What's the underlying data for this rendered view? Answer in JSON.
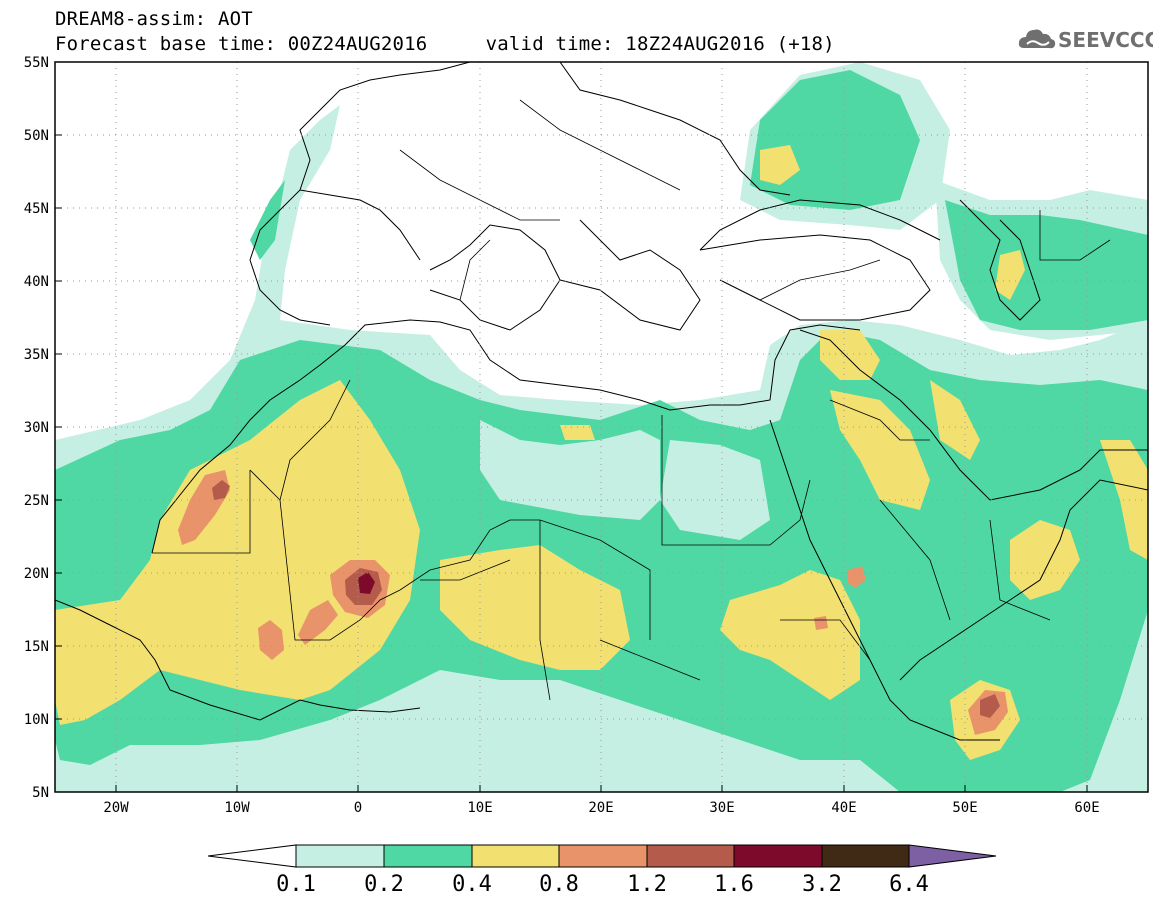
{
  "header": {
    "title_line1": "DREAM8-assim: AOT",
    "title_line2": "Forecast base time: 00Z24AUG2016     valid time: 18Z24AUG2016 (+18)"
  },
  "brand": {
    "logo_icon": "cloud-logo-icon",
    "text": "SEEVCCC"
  },
  "map": {
    "region": "North Africa and Middle East",
    "lon_range": [
      -25,
      65
    ],
    "lat_range": [
      5,
      55
    ],
    "lat_labels": [
      "55N",
      "50N",
      "45N",
      "40N",
      "35N",
      "30N",
      "25N",
      "20N",
      "15N",
      "10N",
      "5N"
    ],
    "lon_labels": [
      "20W",
      "10W",
      "0",
      "10E",
      "20E",
      "30E",
      "40E",
      "50E",
      "60E"
    ],
    "gridlines": "dotted"
  },
  "colorbar": {
    "levels": [
      "0.1",
      "0.2",
      "0.4",
      "0.8",
      "1.2",
      "1.6",
      "3.2",
      "6.4"
    ],
    "colors": [
      "#ffffff",
      "#c6efe4",
      "#4fd8a4",
      "#f2e170",
      "#e8936a",
      "#b55b4b",
      "#7e0a2b",
      "#402a16",
      "#7d5fa3"
    ]
  },
  "colors": {
    "c01": "#c6efe4",
    "c02": "#4fd8a4",
    "c04": "#f2e170",
    "c08": "#e8936a",
    "c12": "#b55b4b",
    "c16": "#7e0a2b",
    "c32": "#402a16"
  }
}
